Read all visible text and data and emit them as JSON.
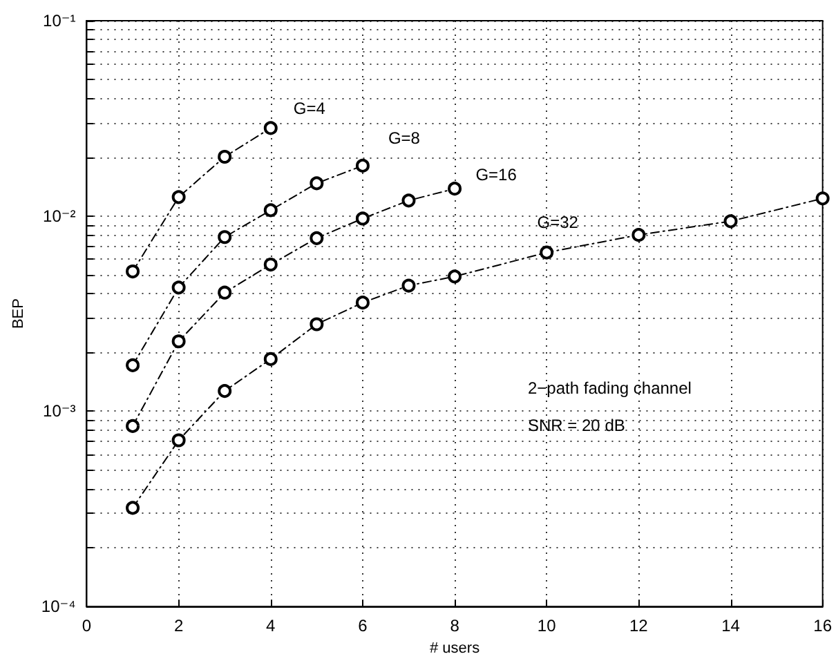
{
  "chart_data": {
    "type": "line",
    "xlabel": "# users",
    "ylabel": "BEP",
    "log": "y",
    "grid": true,
    "marker": "circle",
    "line_style": "dashed",
    "xlim": [
      0,
      16
    ],
    "xticks": [
      0,
      2,
      4,
      6,
      8,
      10,
      12,
      14,
      16
    ],
    "ylim": [
      0.0001,
      0.1
    ],
    "yticks": [
      {
        "value": 0.0001,
        "label": "10⁻⁴"
      },
      {
        "value": 0.0002,
        "label": null
      },
      {
        "value": 0.0003,
        "label": null
      },
      {
        "value": 0.0004,
        "label": null
      },
      {
        "value": 0.0005,
        "label": null
      },
      {
        "value": 0.0006,
        "label": null
      },
      {
        "value": 0.0007,
        "label": null
      },
      {
        "value": 0.0008,
        "label": null
      },
      {
        "value": 0.0009,
        "label": null
      },
      {
        "value": 0.001,
        "label": "10⁻³"
      },
      {
        "value": 0.002,
        "label": null
      },
      {
        "value": 0.003,
        "label": null
      },
      {
        "value": 0.004,
        "label": null
      },
      {
        "value": 0.005,
        "label": null
      },
      {
        "value": 0.006,
        "label": null
      },
      {
        "value": 0.007,
        "label": null
      },
      {
        "value": 0.008,
        "label": null
      },
      {
        "value": 0.009,
        "label": null
      },
      {
        "value": 0.01,
        "label": "10⁻²"
      },
      {
        "value": 0.02,
        "label": null
      },
      {
        "value": 0.03,
        "label": null
      },
      {
        "value": 0.04,
        "label": null
      },
      {
        "value": 0.05,
        "label": null
      },
      {
        "value": 0.06,
        "label": null
      },
      {
        "value": 0.07,
        "label": null
      },
      {
        "value": 0.08,
        "label": null
      },
      {
        "value": 0.09,
        "label": null
      },
      {
        "value": 0.1,
        "label": "10⁻¹"
      }
    ],
    "series": [
      {
        "name": "G=4",
        "color": "#000000",
        "x": [
          1,
          2,
          3,
          4
        ],
        "values": [
          0.0052,
          0.0125,
          0.0201,
          0.0282
        ]
      },
      {
        "name": "G=8",
        "color": "#000000",
        "x": [
          1,
          2,
          3,
          4,
          5,
          6
        ],
        "values": [
          0.00172,
          0.0043,
          0.0078,
          0.0107,
          0.0147,
          0.0181
        ]
      },
      {
        "name": "G=16",
        "color": "#000000",
        "x": [
          1,
          2,
          3,
          4,
          5,
          6,
          7,
          8
        ],
        "values": [
          0.00084,
          0.00228,
          0.00405,
          0.00564,
          0.0077,
          0.0097,
          0.012,
          0.0138
        ]
      },
      {
        "name": "G=32",
        "color": "#000000",
        "x": [
          1,
          2,
          3,
          4,
          5,
          6,
          7,
          8,
          10,
          12,
          14,
          16
        ],
        "values": [
          0.00032,
          0.00071,
          0.00127,
          0.00185,
          0.00279,
          0.0036,
          0.0044,
          0.0049,
          0.0065,
          0.008,
          0.0094,
          0.0123
        ]
      }
    ],
    "annotations": [
      "2−path fading channel",
      "SNR = 20 dB"
    ]
  }
}
